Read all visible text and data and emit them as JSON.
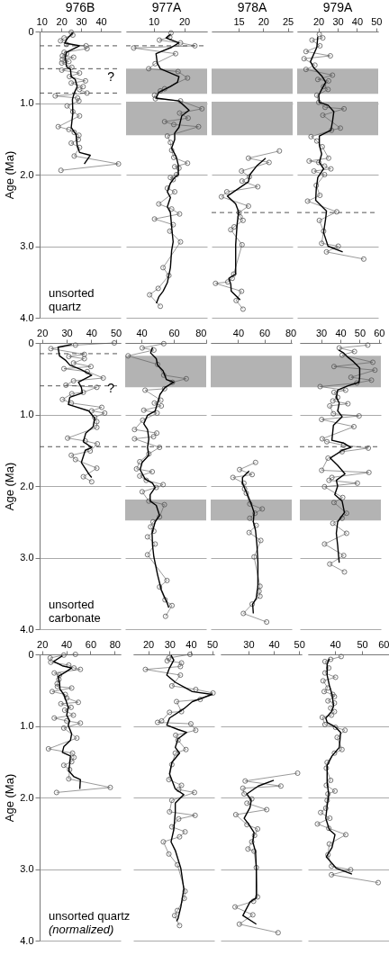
{
  "chart_data": [
    {
      "type": "line",
      "title": "976B",
      "ylabel": "Age (Ma)",
      "xlim": [
        9,
        50
      ],
      "xticks": [
        10,
        20,
        30,
        40
      ],
      "ylim": [
        4,
        0
      ],
      "yticks": [
        0,
        {
          "value": 1,
          "label": "1.0"
        },
        {
          "value": 2,
          "label": "2.0"
        },
        {
          "value": 3,
          "label": "3.0"
        },
        {
          "value": 4,
          "label": "4.0"
        }
      ],
      "grid": "y",
      "ref_lines": [
        {
          "axis": "y",
          "value": 0.2,
          "line_style": "dashed",
          "color": "#555555"
        },
        {
          "axis": "y",
          "value": 0.52,
          "line_style": "dashed",
          "color": "#555555"
        },
        {
          "axis": "y",
          "value": 0.86,
          "line_style": "dashed",
          "color": "#555555"
        }
      ],
      "annotations": [
        "?",
        "unsorted",
        "quartz"
      ],
      "series": [
        {
          "type": "line",
          "marker": "circle",
          "color": "#555555",
          "x": [
            25.0,
            25.8,
            21.4,
            19.6,
            22.6,
            32.5,
            33.0,
            21.4,
            22.6,
            20.5,
            26.2,
            20.5,
            23.8,
            20.2,
            25.3,
            20.2,
            29.2,
            24.1,
            32.2,
            25.0,
            31.0,
            29.2,
            33.0,
            16.9,
            28.2,
            28.9,
            22.9,
            25.8,
            29.2,
            18.4,
            23.8,
            26.5,
            28.9,
            28.6,
            25.0,
            29.2,
            26.5,
            48.9,
            19.8
          ],
          "values": [
            0.01,
            0.05,
            0.09,
            0.13,
            0.18,
            0.2,
            0.24,
            0.29,
            0.31,
            0.34,
            0.36,
            0.39,
            0.42,
            0.44,
            0.5,
            0.54,
            0.58,
            0.63,
            0.69,
            0.72,
            0.77,
            0.81,
            0.86,
            0.9,
            0.93,
            0.97,
            1.04,
            1.12,
            1.18,
            1.33,
            1.37,
            1.41,
            1.45,
            1.51,
            1.56,
            1.62,
            1.74,
            1.85,
            1.94
          ]
        },
        {
          "type": "line",
          "color": "#000000",
          "x": [
            25.8,
            23.2,
            21.7,
            29.2,
            22.6,
            22.0,
            22.6,
            24.6,
            25.0,
            27.0,
            28.0,
            26.5,
            25.6,
            25.8,
            25.0,
            27.4,
            28.0,
            29.2,
            34.6,
            31.6
          ],
          "values": [
            0.02,
            0.09,
            0.16,
            0.2,
            0.29,
            0.36,
            0.49,
            0.53,
            0.63,
            0.67,
            0.77,
            0.86,
            0.95,
            1.14,
            1.34,
            1.44,
            1.59,
            1.69,
            1.73,
            1.85
          ]
        }
      ]
    },
    {
      "type": "line",
      "title": "977A",
      "xlim": [
        1,
        27.5
      ],
      "xticks": [
        10,
        20
      ],
      "ylim": [
        4,
        0
      ],
      "yticks": [
        0,
        1,
        2,
        3,
        4
      ],
      "grid": "y",
      "tick_labels": "x",
      "ref_lines": [
        {
          "axis": "y",
          "value": 0.2,
          "line_style": "dashed",
          "color": "#555555"
        }
      ],
      "bands": [
        {
          "axis": "y",
          "from": 0.52,
          "to": 0.87,
          "color": "#b3b3b3"
        },
        {
          "axis": "y",
          "from": 0.98,
          "to": 1.45,
          "color": "#b3b3b3"
        }
      ],
      "series": [
        {
          "type": "line",
          "marker": "circle",
          "color": "#555555",
          "x": [
            15.7,
            15.3,
            11.9,
            18.8,
            23.5,
            3.5,
            17.2,
            10.5,
            8.4,
            18.0,
            21.1,
            13.6,
            12.2,
            10.3,
            10.6,
            18.8,
            25.8,
            18.5,
            21.3,
            13.6,
            16.6,
            24.7,
            14.5,
            15.5,
            15.9,
            16.6,
            21.1,
            16.9,
            18.3,
            17.5,
            15.5,
            16.4,
            14.5,
            16.9,
            11.7,
            15.9,
            18.5,
            10.3,
            16.4,
            15.3,
            18.8,
            13.1,
            15.0,
            11.5,
            8.7,
            12.2
          ],
          "values": [
            0.02,
            0.08,
            0.12,
            0.16,
            0.2,
            0.23,
            0.31,
            0.45,
            0.52,
            0.56,
            0.65,
            0.8,
            0.83,
            0.89,
            0.94,
            0.97,
            1.08,
            1.14,
            1.21,
            1.26,
            1.3,
            1.33,
            1.46,
            1.55,
            1.66,
            1.76,
            1.84,
            1.89,
            1.91,
            2.0,
            2.04,
            2.07,
            2.19,
            2.24,
            2.41,
            2.48,
            2.55,
            2.62,
            2.7,
            2.79,
            2.94,
            3.3,
            3.41,
            3.59,
            3.68,
            3.84
          ]
        },
        {
          "type": "line",
          "color": "#000000",
          "x": [
            15.5,
            14.1,
            18.3,
            15.9,
            10.8,
            11.2,
            12.2,
            18.3,
            17.8,
            15.5,
            11.7,
            10.8,
            18.3,
            21.6,
            19.2,
            18.3,
            16.9,
            16.9,
            15.9,
            17.4,
            18.1,
            18.1,
            16.9,
            15.5,
            14.5,
            15.5,
            14.5,
            15.5,
            15.9,
            16.4,
            15.9,
            15.5,
            14.5,
            13.1,
            11.7,
            10.9
          ],
          "values": [
            0.04,
            0.09,
            0.16,
            0.22,
            0.31,
            0.44,
            0.52,
            0.63,
            0.71,
            0.77,
            0.85,
            0.93,
            0.97,
            1.1,
            1.18,
            1.34,
            1.42,
            1.51,
            1.63,
            1.75,
            1.87,
            2.0,
            2.04,
            2.12,
            2.24,
            2.32,
            2.45,
            2.53,
            2.73,
            2.94,
            3.06,
            3.3,
            3.51,
            3.63,
            3.71,
            3.8
          ]
        }
      ]
    },
    {
      "type": "line",
      "title": "978A",
      "xlim": [
        9.5,
        26
      ],
      "xticks": [
        15,
        20,
        25
      ],
      "ylim": [
        4,
        0
      ],
      "yticks": [
        0,
        1,
        2,
        3,
        4
      ],
      "grid": "y",
      "tick_labels": "x",
      "ref_lines": [
        {
          "axis": "y",
          "value": 2.53,
          "line_style": "dashed",
          "color": "#555555"
        }
      ],
      "bands": [
        {
          "axis": "y",
          "from": 0.52,
          "to": 0.87,
          "color": "#b3b3b3"
        },
        {
          "axis": "y",
          "from": 0.98,
          "to": 1.45,
          "color": "#b3b3b3"
        }
      ],
      "series": [
        {
          "type": "line",
          "marker": "circle",
          "color": "#555555",
          "x": [
            23.3,
            17.0,
            21.2,
            15.6,
            17.2,
            15.7,
            18.9,
            12.6,
            11.5,
            17.0,
            15.1,
            15.3,
            15.9,
            14.1,
            13.4,
            15.7,
            14.0,
            13.7,
            12.8,
            10.3,
            15.6,
            14.5,
            15.9
          ],
          "values": [
            1.67,
            1.77,
            1.83,
            1.95,
            2.03,
            2.09,
            2.17,
            2.24,
            2.31,
            2.44,
            2.53,
            2.59,
            2.64,
            2.73,
            2.77,
            2.98,
            3.39,
            3.45,
            3.5,
            3.52,
            3.63,
            3.76,
            3.88
          ]
        },
        {
          "type": "line",
          "color": "#000000",
          "x": [
            20.5,
            18.8,
            17.3,
            17.0,
            12.7,
            14.4,
            15.0,
            14.7,
            14.4,
            14.4,
            13.0,
            13.4,
            13.5,
            15.3
          ],
          "values": [
            1.77,
            1.87,
            2.0,
            2.1,
            2.3,
            2.41,
            2.52,
            2.69,
            2.98,
            3.39,
            3.45,
            3.53,
            3.63,
            3.75
          ]
        }
      ]
    },
    {
      "type": "line",
      "title": "979A",
      "xlim": [
        9,
        51
      ],
      "xticks": [
        20,
        30,
        40,
        50
      ],
      "ylim": [
        4,
        0
      ],
      "yticks": [
        0,
        1,
        2,
        3,
        4
      ],
      "grid": "y",
      "tick_labels": "x",
      "ref_lines": [
        {
          "axis": "y",
          "value": 2.53,
          "line_style": "dashed",
          "color": "#555555"
        }
      ],
      "bands": [
        {
          "axis": "y",
          "from": 0.52,
          "to": 0.87,
          "color": "#b3b3b3"
        },
        {
          "axis": "y",
          "from": 0.98,
          "to": 1.45,
          "color": "#b3b3b3"
        }
      ],
      "series": [
        {
          "type": "line",
          "marker": "circle",
          "color": "#555555",
          "x": [
            20.5,
            22.3,
            16.7,
            20.8,
            13.6,
            26.2,
            12.6,
            18.2,
            13.6,
            27.3,
            19.7,
            25.3,
            22.7,
            25.0,
            19.2,
            20.2,
            23.5,
            33.3,
            22.3,
            31.4,
            26.8,
            16.2,
            19.2,
            22.0,
            25.3,
            15.2,
            20.2,
            23.2,
            26.5,
            17.7,
            23.2,
            18.9,
            20.8,
            14.4,
            29.5,
            20.5,
            22.7,
            21.7,
            30.3,
            24.2,
            43.5
          ],
          "values": [
            0.04,
            0.09,
            0.12,
            0.2,
            0.28,
            0.34,
            0.38,
            0.47,
            0.53,
            0.61,
            0.67,
            0.69,
            0.77,
            0.81,
            0.89,
            0.99,
            1.06,
            1.08,
            1.17,
            1.35,
            1.38,
            1.47,
            1.53,
            1.61,
            1.77,
            1.81,
            1.83,
            1.88,
            1.92,
            1.95,
            2.0,
            2.15,
            2.29,
            2.37,
            2.52,
            2.64,
            2.79,
            2.96,
            3.0,
            3.08,
            3.18
          ]
        },
        {
          "type": "line",
          "color": "#000000",
          "x": [
            19.7,
            19.2,
            15.9,
            17.4,
            22.0,
            23.8,
            21.7,
            20.2,
            20.5,
            25.0,
            28.0,
            27.3,
            26.5,
            20.5,
            20.5,
            21.7,
            20.5,
            22.7,
            19.7,
            18.9,
            18.6,
            24.2,
            23.8,
            22.7,
            25.0,
            32.6
          ],
          "values": [
            0.07,
            0.22,
            0.42,
            0.5,
            0.63,
            0.71,
            0.81,
            0.89,
            0.99,
            1.03,
            1.12,
            1.26,
            1.38,
            1.46,
            1.59,
            1.71,
            1.83,
            1.92,
            2.04,
            2.2,
            2.36,
            2.51,
            2.61,
            2.81,
            3.0,
            3.08
          ]
        }
      ]
    },
    {
      "type": "line",
      "ylabel": "Age (Ma)",
      "xlim": [
        19,
        52
      ],
      "xticks": [
        20,
        30,
        40,
        50
      ],
      "ylim": [
        4,
        0
      ],
      "yticks": [
        0,
        {
          "value": 1,
          "label": "1.0"
        },
        {
          "value": 2,
          "label": "2.0"
        },
        {
          "value": 3,
          "label": "3.0"
        },
        {
          "value": 4,
          "label": "4.0"
        }
      ],
      "grid": "y",
      "ref_lines": [
        {
          "axis": "y",
          "value": 0.15,
          "line_style": "dashed",
          "color": "#555555"
        },
        {
          "axis": "y",
          "value": 0.6,
          "line_style": "dashed",
          "color": "#555555"
        },
        {
          "axis": "y",
          "value": 1.45,
          "line_style": "dashed",
          "color": "#555555"
        }
      ],
      "annotations": [
        "?",
        "unsorted",
        "carbonate"
      ],
      "series": [
        {
          "type": "line",
          "marker": "circle",
          "color": "#555555",
          "x": [
            49.4,
            33.6,
            23.6,
            37.2,
            30.9,
            37.2,
            32.8,
            39.9,
            28.9,
            38.4,
            44.9,
            32.8,
            29.7,
            42.3,
            36.8,
            32.1,
            28.3,
            31.9,
            44.3,
            40.2,
            45.5,
            41.4,
            42.3,
            42.3,
            30.4,
            37.6,
            42.5,
            39.6,
            31.9,
            33.6,
            42.3,
            36.8,
            40.2
          ],
          "values": [
            0.0,
            0.03,
            0.08,
            0.16,
            0.19,
            0.22,
            0.28,
            0.33,
            0.36,
            0.4,
            0.49,
            0.53,
            0.59,
            0.62,
            0.69,
            0.71,
            0.79,
            0.84,
            0.9,
            0.95,
            0.98,
            1.04,
            1.1,
            1.18,
            1.33,
            1.37,
            1.41,
            1.51,
            1.57,
            1.63,
            1.75,
            1.87,
            1.94
          ]
        },
        {
          "type": "line",
          "color": "#000000",
          "x": [
            32.1,
            26.5,
            27.1,
            29.5,
            31.3,
            35.7,
            40.2,
            34.8,
            36.0,
            36.4,
            31.3,
            30.7,
            39.0,
            41.4,
            40.8,
            37.8,
            36.8,
            40.2,
            37.6,
            36.0,
            39.0,
            40.2
          ],
          "values": [
            0.02,
            0.06,
            0.18,
            0.24,
            0.31,
            0.37,
            0.45,
            0.55,
            0.62,
            0.7,
            0.76,
            0.86,
            0.95,
            1.05,
            1.17,
            1.26,
            1.38,
            1.46,
            1.5,
            1.67,
            1.83,
            1.88
          ]
        }
      ]
    },
    {
      "type": "line",
      "xlim": [
        30,
        80
      ],
      "xticks": [
        40,
        60,
        80
      ],
      "ylim": [
        4,
        0
      ],
      "yticks": [
        0,
        1,
        2,
        3,
        4
      ],
      "grid": "y",
      "tick_labels": "x",
      "ref_lines": [
        {
          "axis": "y",
          "value": 1.45,
          "line_style": "dashed",
          "color": "#555555"
        }
      ],
      "bands": [
        {
          "axis": "y",
          "from": 0.18,
          "to": 0.62,
          "color": "#b3b3b3"
        },
        {
          "axis": "y",
          "from": 2.19,
          "to": 2.48,
          "color": "#b3b3b3"
        }
      ],
      "series": [
        {
          "type": "line",
          "marker": "circle",
          "color": "#555555",
          "x": [
            53.8,
            40.5,
            47.7,
            31.8,
            50.0,
            53.8,
            67.7,
            59.2,
            54.3,
            42.3,
            52.0,
            48.0,
            52.3,
            41.5,
            49.7,
            40.8,
            35.8,
            49.5,
            47.5,
            35.8,
            51.2,
            44.6,
            39.0,
            37.0,
            46.7,
            39.0,
            43.0,
            53.4,
            49.2,
            40.5,
            44.6,
            54.2,
            51.2,
            47.2,
            45.7,
            47.7,
            43.8,
            48.5,
            43.8,
            55.8,
            51.2,
            54.6,
            58.9,
            54.9
          ],
          "values": [
            0.01,
            0.07,
            0.1,
            0.18,
            0.3,
            0.45,
            0.5,
            0.55,
            0.64,
            0.66,
            0.8,
            0.84,
            0.88,
            0.94,
            0.98,
            1.08,
            1.21,
            1.26,
            1.31,
            1.34,
            1.46,
            1.55,
            1.66,
            1.76,
            1.8,
            1.86,
            1.92,
            1.98,
            2.02,
            2.08,
            2.21,
            2.26,
            2.43,
            2.5,
            2.57,
            2.63,
            2.71,
            2.81,
            2.96,
            3.32,
            3.41,
            3.59,
            3.67,
            3.82
          ]
        },
        {
          "type": "line",
          "color": "#000000",
          "x": [
            46.9,
            45.7,
            49.2,
            50.0,
            53.4,
            55.4,
            60.0,
            54.6,
            51.5,
            50.0,
            48.5,
            43.8,
            41.5,
            43.8,
            44.6,
            43.8,
            44.6,
            40.5,
            39.2,
            42.3,
            46.9,
            48.5,
            45.4,
            45.4,
            49.2,
            51.2,
            48.5,
            46.6,
            46.9,
            47.7,
            50.0,
            52.3,
            54.6,
            56.2,
            56.9
          ],
          "values": [
            0.06,
            0.14,
            0.22,
            0.31,
            0.39,
            0.51,
            0.55,
            0.62,
            0.72,
            0.84,
            0.95,
            1.01,
            1.13,
            1.21,
            1.34,
            1.46,
            1.57,
            1.67,
            1.77,
            1.9,
            1.96,
            2.02,
            2.12,
            2.21,
            2.27,
            2.41,
            2.5,
            2.66,
            2.83,
            2.99,
            3.24,
            3.45,
            3.57,
            3.65,
            3.7
          ]
        }
      ]
    },
    {
      "type": "line",
      "xlim": [
        19,
        81
      ],
      "xticks": [
        40,
        60,
        80
      ],
      "ylim": [
        4,
        0
      ],
      "yticks": [
        0,
        1,
        2,
        3,
        4
      ],
      "grid": "y",
      "tick_labels": "x",
      "ref_lines": [
        {
          "axis": "y",
          "value": 1.45,
          "line_style": "dashed",
          "color": "#555555"
        }
      ],
      "bands": [
        {
          "axis": "y",
          "from": 0.18,
          "to": 0.62,
          "color": "#b3b3b3"
        },
        {
          "axis": "y",
          "from": 2.19,
          "to": 2.48,
          "color": "#b3b3b3"
        }
      ],
      "series": [
        {
          "type": "line",
          "marker": "circle",
          "color": "#555555",
          "x": [
            53.3,
            41.1,
            50.7,
            36.0,
            44.4,
            44.9,
            46.2,
            48.9,
            58.4,
            52.9,
            48.9,
            53.8,
            48.4,
            57.3,
            52.2,
            56.7,
            56.0,
            56.7,
            50.7,
            44.0,
            61.8
          ],
          "values": [
            1.67,
            1.77,
            1.84,
            1.88,
            1.96,
            2.04,
            2.1,
            2.25,
            2.32,
            2.38,
            2.45,
            2.55,
            2.65,
            2.76,
            2.99,
            3.4,
            3.47,
            3.54,
            3.65,
            3.78,
            3.9
          ]
        },
        {
          "type": "line",
          "color": "#000000",
          "x": [
            48.4,
            43.3,
            43.3,
            46.7,
            50.0,
            52.2,
            51.6,
            53.3,
            54.4,
            55.1,
            55.1,
            53.8,
            51.1,
            51.6
          ],
          "values": [
            1.79,
            1.88,
            1.96,
            2.1,
            2.25,
            2.37,
            2.5,
            2.62,
            2.83,
            3.07,
            3.4,
            3.57,
            3.65,
            3.78
          ]
        }
      ]
    },
    {
      "type": "line",
      "xlim": [
        19,
        61
      ],
      "xticks": [
        30,
        40,
        50,
        60
      ],
      "ylim": [
        4,
        0
      ],
      "yticks": [
        0,
        1,
        2,
        3,
        4
      ],
      "grid": "y",
      "tick_labels": "x",
      "ref_lines": [
        {
          "axis": "y",
          "value": 1.45,
          "line_style": "dashed",
          "color": "#555555"
        }
      ],
      "bands": [
        {
          "axis": "y",
          "from": 0.18,
          "to": 0.62,
          "color": "#b3b3b3"
        },
        {
          "axis": "y",
          "from": 2.19,
          "to": 2.48,
          "color": "#b3b3b3"
        }
      ],
      "series": [
        {
          "type": "line",
          "marker": "circle",
          "color": "#555555",
          "x": [
            54.2,
            39.4,
            47.3,
            40.9,
            56.8,
            36.7,
            57.9,
            45.5,
            56.1,
            48.5,
            29.5,
            42.7,
            36.7,
            38.6,
            36.1,
            43.9,
            34.5,
            36.4,
            49.7,
            30.3,
            47.0,
            30.6,
            33.0,
            41.7,
            54.5,
            40.9,
            33.6,
            30.3,
            54.8,
            35.6,
            34.1,
            48.8,
            31.8,
            41.2,
            36.7,
            43.2,
            40.9,
            36.1,
            43.2,
            31.8,
            41.7,
            34.5,
            42.1
          ],
          "values": [
            0.03,
            0.07,
            0.12,
            0.17,
            0.27,
            0.33,
            0.38,
            0.48,
            0.52,
            0.56,
            0.61,
            0.66,
            0.69,
            0.76,
            0.81,
            0.85,
            0.88,
            0.99,
            1.02,
            1.07,
            1.17,
            1.34,
            1.38,
            1.43,
            1.47,
            1.52,
            1.61,
            1.78,
            1.81,
            1.88,
            1.92,
            1.96,
            2.01,
            2.16,
            2.23,
            2.38,
            2.45,
            2.52,
            2.66,
            2.81,
            2.97,
            3.09,
            3.2
          ]
        },
        {
          "type": "line",
          "color": "#000000",
          "x": [
            39.1,
            41.7,
            43.9,
            46.7,
            50.0,
            50.0,
            49.7,
            43.9,
            38.6,
            37.9,
            39.4,
            38.6,
            40.9,
            36.4,
            35.6,
            41.7,
            45.5,
            40.9,
            34.8,
            38.6,
            42.4,
            37.9,
            38.6,
            37.1,
            40.9,
            42.1,
            38.6,
            37.9,
            38.6,
            39.4
          ],
          "values": [
            0.1,
            0.14,
            0.2,
            0.26,
            0.35,
            0.47,
            0.55,
            0.6,
            0.66,
            0.76,
            0.84,
            0.95,
            1.03,
            1.15,
            1.36,
            1.4,
            1.46,
            1.5,
            1.61,
            1.71,
            1.83,
            1.92,
            2.0,
            2.12,
            2.21,
            2.37,
            2.5,
            2.66,
            2.83,
            3.07
          ]
        }
      ]
    },
    {
      "type": "line",
      "ylabel": "Age (Ma)",
      "xlim": [
        18,
        85
      ],
      "xticks": [
        20,
        40,
        60,
        80
      ],
      "ylim": [
        4,
        0
      ],
      "yticks": [
        0,
        {
          "value": 1,
          "label": "1.0"
        },
        {
          "value": 2,
          "label": "2.0"
        },
        {
          "value": 3,
          "label": "3.0"
        },
        {
          "value": 4,
          "label": "4.0"
        }
      ],
      "grid": "y",
      "annotations": [
        "unsorted quartz",
        "(normalized)"
      ],
      "series": [
        {
          "type": "line",
          "marker": "circle",
          "color": "#555555",
          "x": [
            47.6,
            38.0,
            26.7,
            27.2,
            42.1,
            46.4,
            51.7,
            30.1,
            34.4,
            33.9,
            32.5,
            32.7,
            44.5,
            28.4,
            39.2,
            40.4,
            50.0,
            35.6,
            44.0,
            38.7,
            45.9,
            30.1,
            40.4,
            51.7,
            38.0,
            48.8,
            25.3,
            45.2,
            46.4,
            44.5,
            38.0,
            42.8,
            42.1,
            76.4,
            32.0
          ],
          "values": [
            0.0,
            0.01,
            0.05,
            0.11,
            0.15,
            0.19,
            0.21,
            0.26,
            0.29,
            0.35,
            0.41,
            0.45,
            0.47,
            0.52,
            0.56,
            0.61,
            0.67,
            0.69,
            0.74,
            0.78,
            0.85,
            0.89,
            0.93,
            0.96,
            1.03,
            1.17,
            1.32,
            1.38,
            1.44,
            1.5,
            1.55,
            1.61,
            1.74,
            1.86,
            1.93
          ]
        },
        {
          "type": "line",
          "color": "#000000",
          "x": [
            36.8,
            33.2,
            29.6,
            36.8,
            44.5,
            39.2,
            33.2,
            34.4,
            34.9,
            38.0,
            39.7,
            41.6,
            40.4,
            42.8,
            41.6,
            44.5,
            43.5,
            38.0,
            36.8,
            43.5,
            42.8,
            42.1,
            46.4,
            51.7,
            51.2
          ],
          "values": [
            0.02,
            0.06,
            0.1,
            0.16,
            0.19,
            0.25,
            0.31,
            0.39,
            0.49,
            0.56,
            0.64,
            0.74,
            0.85,
            0.93,
            0.99,
            1.11,
            1.2,
            1.29,
            1.37,
            1.42,
            1.54,
            1.63,
            1.71,
            1.75,
            1.88
          ]
        }
      ]
    },
    {
      "type": "line",
      "xlim": [
        13,
        51
      ],
      "xticks": [
        20,
        30,
        40,
        50
      ],
      "ylim": [
        4,
        0
      ],
      "yticks": [
        0,
        1,
        2,
        3,
        4
      ],
      "grid": "y",
      "tick_labels": "x",
      "series": [
        {
          "type": "line",
          "marker": "circle",
          "color": "#555555",
          "x": [
            39.6,
            29.7,
            28.9,
            35.6,
            35.1,
            18.7,
            35.1,
            31.1,
            42.3,
            50.4,
            44.4,
            33.3,
            35.6,
            30.0,
            26.3,
            24.4,
            40.0,
            42.3,
            32.9,
            34.0,
            37.7,
            32.7,
            31.1,
            29.7,
            35.6,
            34.3,
            41.7,
            31.1,
            30.0,
            42.0,
            34.3,
            31.1,
            37.3,
            34.7,
            27.1,
            29.7,
            33.7,
            37.3,
            36.9,
            33.7,
            32.4,
            34.7
          ],
          "values": [
            0.0,
            0.05,
            0.09,
            0.12,
            0.17,
            0.21,
            0.29,
            0.44,
            0.49,
            0.54,
            0.63,
            0.66,
            0.8,
            0.81,
            0.93,
            0.95,
            0.97,
            1.06,
            1.13,
            1.2,
            1.33,
            1.38,
            1.54,
            1.75,
            1.83,
            1.89,
            1.93,
            2.04,
            2.2,
            2.25,
            2.3,
            2.41,
            2.48,
            2.55,
            2.62,
            2.79,
            2.94,
            3.31,
            3.41,
            3.58,
            3.65,
            3.79
          ]
        },
        {
          "type": "line",
          "color": "#000000",
          "x": [
            30.7,
            32.0,
            30.0,
            28.7,
            32.7,
            40.7,
            50.0,
            40.7,
            36.7,
            30.0,
            28.7,
            34.0,
            38.0,
            34.0,
            32.7,
            34.7,
            31.1,
            30.0,
            32.7,
            36.7,
            32.7,
            32.7,
            32.0,
            30.7,
            32.7,
            35.3,
            36.7,
            35.3,
            34.0,
            33.3
          ],
          "values": [
            0.01,
            0.08,
            0.19,
            0.29,
            0.39,
            0.52,
            0.56,
            0.66,
            0.76,
            0.89,
            0.99,
            1.05,
            1.09,
            1.18,
            1.3,
            1.38,
            1.51,
            1.67,
            1.88,
            1.96,
            2.08,
            2.21,
            2.45,
            2.62,
            2.74,
            2.99,
            3.28,
            3.53,
            3.69,
            3.73
          ]
        }
      ]
    },
    {
      "type": "line",
      "xlim": [
        19,
        51
      ],
      "xticks": [
        30,
        40,
        50
      ],
      "ylim": [
        4,
        0
      ],
      "yticks": [
        0,
        1,
        2,
        3,
        4
      ],
      "grid": "y",
      "tick_labels": "x",
      "series": [
        {
          "type": "line",
          "marker": "circle",
          "color": "#555555",
          "x": [
            49.4,
            28.7,
            42.8,
            27.8,
            28.3,
            31.3,
            29.4,
            37.2,
            25.0,
            29.4,
            33.6,
            32.4,
            31.3,
            29.8,
            32.2,
            33.1,
            33.6,
            32.0,
            24.7,
            31.7,
            26.4,
            41.7
          ],
          "values": [
            1.66,
            1.77,
            1.84,
            1.87,
            1.95,
            2.02,
            2.08,
            2.17,
            2.24,
            2.38,
            2.44,
            2.53,
            2.62,
            2.72,
            2.75,
            2.98,
            3.39,
            3.45,
            3.53,
            3.64,
            3.77,
            3.89
          ]
        },
        {
          "type": "line",
          "color": "#000000",
          "x": [
            40.0,
            33.9,
            29.4,
            31.1,
            30.6,
            28.3,
            30.0,
            32.2,
            31.7,
            32.8,
            33.1,
            33.1,
            30.6,
            27.8,
            33.1
          ],
          "values": [
            1.76,
            1.84,
            1.95,
            2.04,
            2.14,
            2.29,
            2.37,
            2.49,
            2.62,
            2.76,
            2.99,
            3.4,
            3.46,
            3.65,
            3.77
          ]
        }
      ]
    },
    {
      "type": "line",
      "xlim": [
        30,
        60
      ],
      "xticks": [
        40,
        50,
        60
      ],
      "ylim": [
        4,
        0
      ],
      "yticks": [
        0,
        1,
        2,
        3,
        4
      ],
      "grid": "y",
      "tick_labels": "x",
      "series": [
        {
          "type": "line",
          "marker": "circle",
          "color": "#555555",
          "x": [
            42.3,
            38.4,
            36.3,
            37.7,
            36.3,
            40.2,
            35.6,
            37.4,
            36.0,
            39.2,
            39.8,
            37.4,
            39.8,
            38.4,
            39.8,
            38.7,
            35.3,
            36.3,
            40.2,
            43.7,
            40.8,
            42.6,
            39.8,
            37.1,
            36.8,
            38.4,
            36.8,
            40.0,
            37.4,
            37.1,
            36.6,
            34.7,
            38.1,
            33.5,
            37.7,
            44.0,
            37.9,
            37.4,
            38.7,
            45.8,
            38.7,
            56.0
          ],
          "values": [
            0.03,
            0.07,
            0.1,
            0.19,
            0.26,
            0.32,
            0.37,
            0.47,
            0.52,
            0.56,
            0.59,
            0.65,
            0.68,
            0.75,
            0.8,
            0.85,
            0.88,
            0.98,
            1.02,
            1.06,
            1.16,
            1.33,
            1.38,
            1.51,
            1.59,
            1.76,
            1.83,
            1.91,
            1.95,
            2.04,
            2.15,
            2.21,
            2.29,
            2.37,
            2.43,
            2.52,
            2.65,
            2.8,
            2.96,
            3.01,
            3.08,
            3.19
          ]
        },
        {
          "type": "line",
          "color": "#000000",
          "x": [
            37.9,
            37.1,
            37.1,
            37.9,
            38.9,
            39.5,
            38.7,
            36.6,
            37.1,
            40.0,
            42.1,
            41.6,
            38.9,
            37.1,
            37.1,
            37.7,
            37.1,
            36.6,
            37.9,
            40.0,
            38.9,
            36.8,
            38.7,
            40.5,
            46.3
          ],
          "values": [
            0.06,
            0.14,
            0.29,
            0.43,
            0.56,
            0.72,
            0.8,
            0.89,
            0.95,
            1.01,
            1.09,
            1.3,
            1.42,
            1.55,
            1.79,
            1.96,
            2.12,
            2.29,
            2.45,
            2.52,
            2.7,
            2.83,
            2.91,
            2.99,
            3.07
          ]
        }
      ]
    }
  ]
}
